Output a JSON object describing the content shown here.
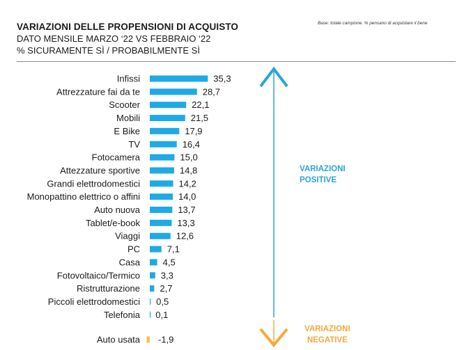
{
  "header": {
    "title": "VARIAZIONI DELLE PROPENSIONI DI ACQUISTO",
    "subtitle_line1": "DATO MENSILE MARZO ‘22 VS FEBBRAIO ‘22",
    "subtitle_line2": "% SICURAMENTE SÌ / PROBABILMENTE SÌ",
    "note": "Base: totale campione. % pensano di acquistare il bene"
  },
  "annotations": {
    "positive_line1": "VARIAZIONI",
    "positive_line2": "POSITIVE",
    "negative_line1": "VARIAZIONI",
    "negative_line2": "NEGATIVE"
  },
  "colors": {
    "positive_bar": "#1eaae6",
    "negative_bar": "#f6c245",
    "positive_arrow": "#2da3da",
    "negative_arrow": "#f6a83c"
  },
  "chart_data": {
    "type": "bar",
    "orientation": "horizontal",
    "categories": [
      "Infissi",
      "Attrezzature fai da te",
      "Scooter",
      "Mobili",
      "E Bike",
      "TV",
      "Fotocamera",
      "Attezzature sportive",
      "Grandi elettrodomestici",
      "Monopattino elettrico o affini",
      "Auto nuova",
      "Tablet/e-book",
      "Viaggi",
      "PC",
      "Casa",
      "Fotovoltaico/Termico",
      "Ristrutturazione",
      "Piccoli elettrodomestici",
      "Telefonia",
      "Auto usata"
    ],
    "values": [
      35.3,
      28.7,
      22.1,
      21.5,
      17.9,
      16.4,
      15.0,
      14.8,
      14.2,
      14.0,
      13.7,
      13.3,
      12.6,
      7.1,
      4.5,
      3.3,
      2.7,
      0.5,
      0.1,
      -1.9
    ],
    "value_labels": [
      "35,3",
      "28,7",
      "22,1",
      "21,5",
      "17,9",
      "16,4",
      "15,0",
      "14,8",
      "14,2",
      "14,0",
      "13,7",
      "13,3",
      "12,6",
      "7,1",
      "4,5",
      "3,3",
      "2,7",
      "0,5",
      "0,1",
      "-1,9"
    ],
    "title": "VARIAZIONI DELLE PROPENSIONI DI ACQUISTO",
    "grid": false,
    "legend": "none"
  }
}
